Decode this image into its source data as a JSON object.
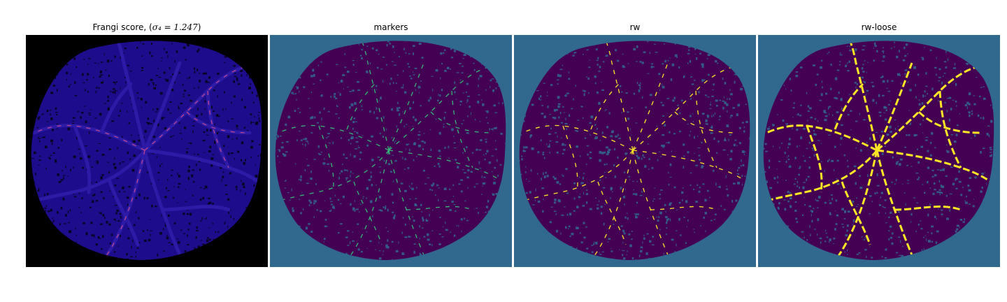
{
  "panels": [
    {
      "title_prefix": "Frangi score, (",
      "title_math": "σ₄ = 1.247",
      "title_suffix": ")",
      "background": "#000000",
      "fill": "#1d0c8c",
      "texture": "#05030f",
      "vessel": "#2d1aa6",
      "highlight": "#e14f8a"
    },
    {
      "title": "markers",
      "background": "#31688e",
      "fill": "#440154",
      "texture": "#31688e",
      "vessel": "#440154",
      "highlight": "#35b779"
    },
    {
      "title": "rw",
      "background": "#31688e",
      "fill": "#440154",
      "texture": "#31688e",
      "vessel": "#440154",
      "highlight": "#fde725"
    },
    {
      "title": "rw-loose",
      "background": "#31688e",
      "fill": "#440154",
      "texture": "#31688e",
      "vessel": "#440154",
      "highlight": "#fde725"
    }
  ]
}
